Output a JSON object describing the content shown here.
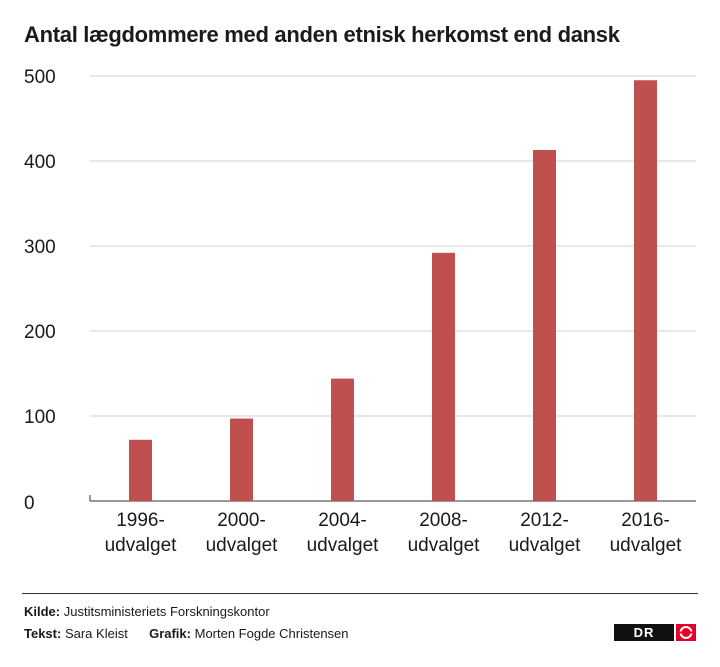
{
  "chart_data": {
    "type": "bar",
    "title": "Antal lægdommere med anden etnisk herkomst end dansk",
    "categories": [
      [
        "1996-",
        "udvalget"
      ],
      [
        "2000-",
        "udvalget"
      ],
      [
        "2004-",
        "udvalget"
      ],
      [
        "2008-",
        "udvalget"
      ],
      [
        "2012-",
        "udvalget"
      ],
      [
        "2016-",
        "udvalget"
      ]
    ],
    "values": [
      72,
      97,
      144,
      292,
      413,
      495
    ],
    "ylim": [
      0,
      500
    ],
    "yticks": [
      0,
      100,
      200,
      300,
      400,
      500
    ],
    "grid": true,
    "bar_color": "#c0504d"
  },
  "footer": {
    "source_label": "Kilde:",
    "source_value": "Justitsministeriets Forskningskontor",
    "text_label": "Tekst:",
    "text_value": "Sara Kleist",
    "graphic_label": "Grafik:",
    "graphic_value": "Morten Fogde Christensen"
  },
  "logo": {
    "text": "DR",
    "icon": "dr-logo-icon",
    "accent": "#e4002b"
  }
}
